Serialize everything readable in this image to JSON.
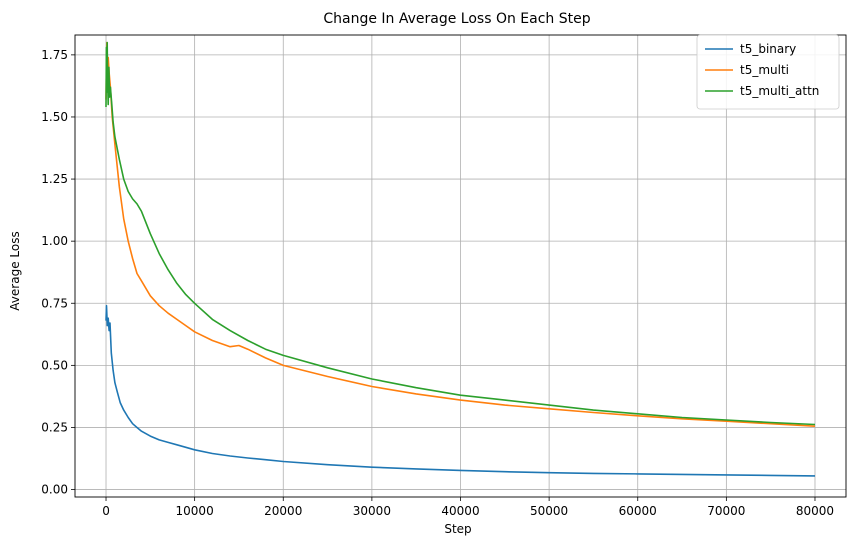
{
  "chart_data": {
    "type": "line",
    "title": "Change In Average Loss On Each Step",
    "xlabel": "Step",
    "ylabel": "Average Loss",
    "xlim": [
      -3500,
      83500
    ],
    "ylim": [
      -0.03,
      1.83
    ],
    "xticks": [
      0,
      10000,
      20000,
      30000,
      40000,
      50000,
      60000,
      70000,
      80000
    ],
    "xtick_labels": [
      "0",
      "10000",
      "20000",
      "30000",
      "40000",
      "50000",
      "60000",
      "70000",
      "80000"
    ],
    "yticks": [
      0.0,
      0.25,
      0.5,
      0.75,
      1.0,
      1.25,
      1.5,
      1.75
    ],
    "ytick_labels": [
      "0.00",
      "0.25",
      "0.50",
      "0.75",
      "1.00",
      "1.25",
      "1.50",
      "1.75"
    ],
    "grid": true,
    "legend_position": "top-right",
    "series": [
      {
        "name": "t5_binary",
        "color": "#1f77b4",
        "x": [
          0,
          60,
          150,
          250,
          350,
          450,
          600,
          800,
          1000,
          1300,
          1600,
          2000,
          2500,
          3000,
          3500,
          4000,
          5000,
          6000,
          7000,
          8000,
          9000,
          10000,
          12000,
          14000,
          16000,
          18000,
          20000,
          25000,
          30000,
          35000,
          40000,
          45000,
          50000,
          55000,
          60000,
          65000,
          70000,
          75000,
          80000
        ],
        "values": [
          0.68,
          0.74,
          0.66,
          0.69,
          0.64,
          0.67,
          0.55,
          0.48,
          0.43,
          0.39,
          0.35,
          0.32,
          0.29,
          0.265,
          0.25,
          0.235,
          0.215,
          0.2,
          0.19,
          0.18,
          0.17,
          0.16,
          0.145,
          0.135,
          0.127,
          0.12,
          0.113,
          0.1,
          0.09,
          0.083,
          0.077,
          0.072,
          0.068,
          0.065,
          0.063,
          0.061,
          0.059,
          0.057,
          0.055
        ]
      },
      {
        "name": "t5_multi",
        "color": "#ff7f0e",
        "x": [
          0,
          50,
          100,
          150,
          250,
          350,
          500,
          700,
          1000,
          1500,
          2000,
          2500,
          3000,
          3500,
          4000,
          5000,
          6000,
          7000,
          8000,
          9000,
          10000,
          12000,
          14000,
          15000,
          16000,
          18000,
          20000,
          25000,
          30000,
          35000,
          40000,
          45000,
          50000,
          55000,
          60000,
          65000,
          70000,
          75000,
          80000
        ],
        "values": [
          1.57,
          1.72,
          1.8,
          1.62,
          1.74,
          1.68,
          1.62,
          1.5,
          1.39,
          1.22,
          1.09,
          1.0,
          0.93,
          0.87,
          0.84,
          0.78,
          0.74,
          0.71,
          0.685,
          0.66,
          0.635,
          0.6,
          0.575,
          0.58,
          0.565,
          0.53,
          0.5,
          0.455,
          0.415,
          0.385,
          0.36,
          0.34,
          0.325,
          0.31,
          0.297,
          0.285,
          0.275,
          0.265,
          0.255
        ]
      },
      {
        "name": "t5_multi_attn",
        "color": "#2ca02c",
        "x": [
          0,
          40,
          80,
          130,
          180,
          250,
          320,
          400,
          500,
          650,
          800,
          1000,
          1500,
          2000,
          2500,
          3000,
          3500,
          4000,
          5000,
          6000,
          7000,
          8000,
          9000,
          10000,
          12000,
          14000,
          16000,
          18000,
          20000,
          25000,
          30000,
          35000,
          40000,
          45000,
          50000,
          55000,
          60000,
          65000,
          70000,
          75000,
          80000
        ],
        "values": [
          1.54,
          1.78,
          1.6,
          1.8,
          1.65,
          1.55,
          1.7,
          1.58,
          1.62,
          1.55,
          1.48,
          1.42,
          1.33,
          1.25,
          1.2,
          1.17,
          1.15,
          1.12,
          1.03,
          0.95,
          0.885,
          0.83,
          0.785,
          0.75,
          0.685,
          0.64,
          0.6,
          0.565,
          0.54,
          0.49,
          0.445,
          0.41,
          0.38,
          0.36,
          0.34,
          0.32,
          0.305,
          0.29,
          0.28,
          0.27,
          0.262
        ]
      }
    ]
  }
}
